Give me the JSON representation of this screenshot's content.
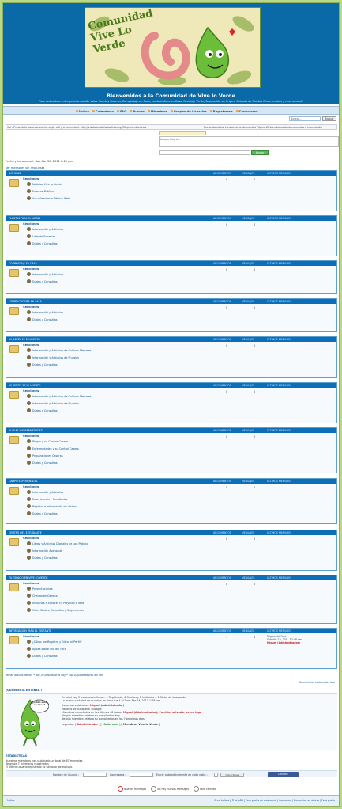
{
  "header": {
    "banner_text": "Comunidad Vive Lo Verde",
    "title": "Bienvenidos a la Comunidad de Vive lo Verde",
    "description": "Foro dedicado a entregar información sobre Huertos Caseros, Compostaje en Casa, Lombricultura en Casa, Reciclaje Verde, Separación en Origen, Cuidado de Plantas Ornamentales y mucho más!!"
  },
  "nav": [
    "Índice",
    "Calendario",
    "FAQ",
    "Buscar",
    "Miembros",
    "Grupos de Usuarios",
    "Registrarse",
    "Conectarse"
  ],
  "search": {
    "placeholder": "Buscar...",
    "button": "Buscar"
  },
  "ticker": "Vbl - Presentate para conocerte mejor a ti y a tus metas!: http://viveloverda.foroactivo.org/f34-presentaciones",
  "ticker_right": "Recuerda visitar constantemente nuestra Página Web en busca de documentos e información",
  "chat": {
    "text": "Adopta Hoy la...",
    "send": "Enviar"
  },
  "datetime": "Fecha y hora actual: Sab Abr 30, 2011 8:25 pm",
  "unread": "Ver mensajes sin respuesta",
  "columns": {
    "topics": "ARGUMENTOS",
    "messages": "MENSAJES",
    "last": "ÚLTIMOS MENSAJES"
  },
  "sections_label": "Secciones",
  "categories": [
    {
      "name": "NOTICIAS",
      "topics": "0",
      "messages": "0",
      "subs": [
        "Noticias Vive lo Verde",
        "Eventos Públicos",
        "Actualizaciones Página Web"
      ]
    },
    {
      "name": "PLANTAS PARA EL JARDÍN",
      "topics": "0",
      "messages": "0",
      "subs": [
        "Información y Artículos",
        "Lista de Especies",
        "Dudas y Consultas"
      ]
    },
    {
      "name": "COMPOSTAJE EN CASA",
      "topics": "0",
      "messages": "0",
      "subs": [
        "Información y Artículos",
        "Dudas y Consultas"
      ]
    },
    {
      "name": "LOMBRICULTURA EN CASA",
      "topics": "0",
      "messages": "0",
      "subs": [
        "Información y Artículos",
        "Dudas y Consultas"
      ]
    },
    {
      "name": "MI JARDÍN ES MI HUERTO",
      "topics": "0",
      "messages": "0",
      "subs": [
        "Información y Artículos de Cultivos Menores",
        "Información y Artículos de Frutales",
        "Dudas y Consultas"
      ]
    },
    {
      "name": "MI DEPTO. ES MI HUERTO",
      "topics": "0",
      "messages": "0",
      "subs": [
        "Información y Artículos de Cultivos Menores",
        "Información y Artículos de Frutales",
        "Dudas y Consultas"
      ]
    },
    {
      "name": "PLAGAS Y ENFERMEDADES",
      "topics": "0",
      "messages": "0",
      "subs": [
        "Plagas y su Control Casero",
        "Enfermedades y su Control Casero",
        "Preparaciones Caseras",
        "Dudas y Consultas"
      ]
    },
    {
      "name": "CAMPO EXPERIMENTAL",
      "topics": "0",
      "messages": "0",
      "subs": [
        "Información y Artículos",
        "Experiencias y Resultados",
        "Registro e Información de Visitas",
        "Dudas y Consultas"
      ]
    },
    {
      "name": "CENTRO DEL ESTUDIANTE",
      "topics": "0",
      "messages": "0",
      "subs": [
        "Libros y Artículos Digitales de uso Público",
        "Información Avanzada",
        "Dudas y Consultas"
      ]
    },
    {
      "name": "TU ESPACIO EN VIVE LO VERDE",
      "topics": "0",
      "messages": "0",
      "subs": [
        "Presentaciones",
        "Charlas en General",
        "Invítanos a conocer tu Proyecto o Idea",
        "Otras Dudas, Consultas y Sugerencias"
      ]
    },
    {
      "name": "INFORMACIÓN PARA EL VISITANTE",
      "topics": "1",
      "messages": "1",
      "subs": [
        "¿Cómo me Registro y Edito mi Perfil?",
        "Ayuda sobre uso del Foro",
        "Dudas y Consultas"
      ],
      "last_post": {
        "title": "Reglas del Foro",
        "date": "Sab Abr 23, 2011 12:48 am",
        "author": "Miguel (Administrador)"
      }
    }
  ],
  "legend": "Temas activos del día • Top 20 posteadores hoy • Top 20 posteadores del foro",
  "delete_cookies": "Suprimir las cookies del foro",
  "who_online": {
    "title": "¿QUIÉN ESTÁ EN LÍNEA ?",
    "mascot_text": "¿Quién está en línea?",
    "total": "En total hay 3 usuarios en línea :: 1 Registrado, 0 Ocultos y 2 Invitados :: 1 Motor de búsqueda",
    "record": "La mayor cantidad de usuarios en línea fue 4 el Dom Abr 24, 2011 1:08 pm.",
    "registered_label": "Usuarios registrados:",
    "registered_user": "Miguel (Administrador)",
    "bots": "Motores de búsqueda : Google",
    "last24": "Miembros conectados en las últimas 48 horas:",
    "last24_users": "Miguel (Administrador), Patricia, salvador perea lugo",
    "birthday_today": "Ningún miembro celebra su cumpleaños hoy",
    "birthday_week": "Ningún miembro celebra su cumpleaños en los 7 próximos días",
    "legend_label": "Leyenda :",
    "legend_admin": "Administrador",
    "legend_mod": "Moderador",
    "legend_members": "Miembros Vive lo Verde"
  },
  "stats": {
    "title": "ESTADÍSTICAS",
    "line1": "Nuestros miembros han publicado un total de 67 mensajes",
    "line2": "Tenemos 7 miembros registrados",
    "line3": "El último usuario registrado es salvador perea lugo."
  },
  "login": {
    "user_label": "Nombre de Usuario :",
    "pass_label": "Contraseña :",
    "remember": "Entrar automáticamente en cada visita :",
    "button": "Conectarse",
    "facebook": "Connect"
  },
  "icons_legend": [
    "Nuevos mensajes",
    "No hay nuevos mensajes",
    "Foro cerrado"
  ],
  "footer": {
    "home": "Índice",
    "links": "Crea tu foro | © phpBB | Foro gratis de asistencia | Contactar | Denunciar un abuso | Foro gratis"
  }
}
